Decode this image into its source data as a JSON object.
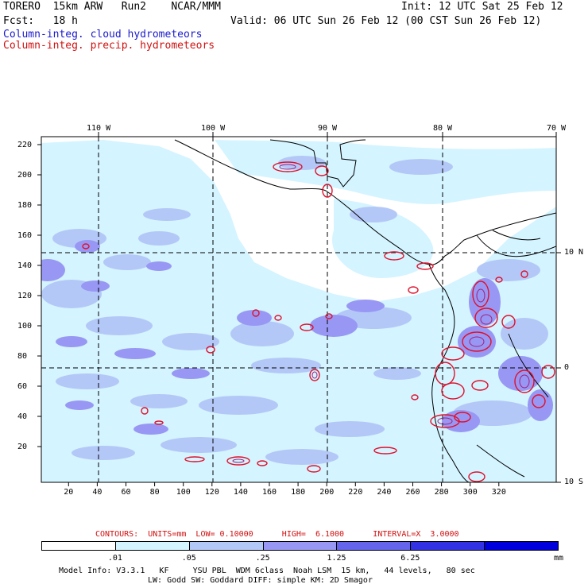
{
  "header": {
    "line1_left": "TORERO  15km ARW   Run2    NCAR/MMM",
    "line1_right": "Init: 12 UTC Sat 25 Feb 12",
    "line2_left": "Fcst:   18 h",
    "line2_right": "Valid: 06 UTC Sun 26 Feb 12 (00 CST Sun 26 Feb 12)",
    "field1": "Column-integ. cloud hydrometeors",
    "field2": "Column-integ. precip. hydrometeors"
  },
  "axes": {
    "top_lon": [
      "110 W",
      "100 W",
      "90 W",
      "80 W",
      "70 W"
    ],
    "right_lat": [
      "10 N",
      "0",
      "10 S"
    ],
    "left_y": [
      "220",
      "200",
      "180",
      "160",
      "140",
      "120",
      "100",
      "80",
      "60",
      "40",
      "20"
    ],
    "bottom_x": [
      "20",
      "40",
      "60",
      "80",
      "100",
      "120",
      "140",
      "160",
      "180",
      "200",
      "220",
      "240",
      "260",
      "280",
      "300",
      "320"
    ]
  },
  "contours": {
    "text": "CONTOURS:  UNITS=mm  LOW= 0.10000      HIGH=  6.1000      INTERVAL=X  3.0000",
    "units": "mm",
    "low": 0.1,
    "high": 6.1,
    "interval_factor": 3.0
  },
  "legend": {
    "labels": [
      ".01",
      ".05",
      ".25",
      "1.25",
      "6.25"
    ],
    "unit": "mm",
    "colors": [
      "#ffffff",
      "#d4f4ff",
      "#b4c8f8",
      "#9898f4",
      "#6464ec",
      "#3232e4",
      "#0000dc"
    ]
  },
  "footer": {
    "line1": "Model Info: V3.3.1   KF     YSU PBL  WDM 6class  Noah LSM  15 km,   44 levels,   80 sec",
    "line2": "LW: Godd SW: Goddard DIFF: simple KM: 2D Smagor"
  },
  "colors": {
    "cloud_light": "#d4f4ff",
    "cloud_mid": "#b4c8f8",
    "cloud_dense": "#9898f4",
    "precip_contour": "#e0102c",
    "precip_inner": "#a0207c"
  }
}
